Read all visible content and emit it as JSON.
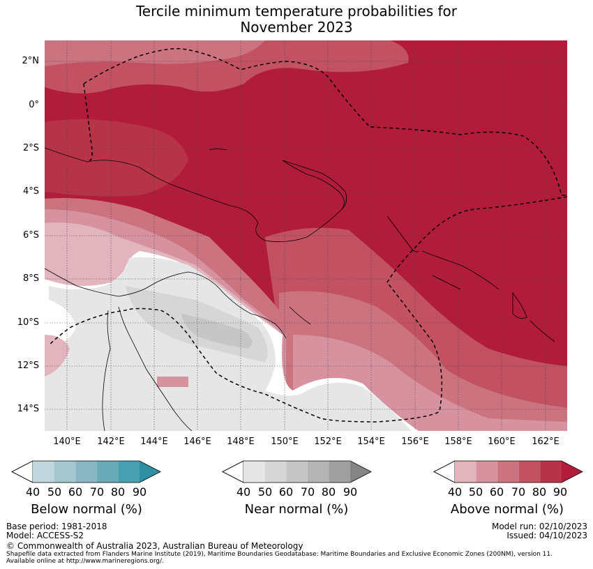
{
  "title": {
    "line1": "Tercile minimum temperature probabilities for",
    "line2": "November 2023"
  },
  "map": {
    "lat_labels": [
      "2°N",
      "0°",
      "2°S",
      "4°S",
      "6°S",
      "8°S",
      "10°S",
      "12°S",
      "14°S"
    ],
    "lon_labels": [
      "140°E",
      "142°E",
      "144°E",
      "146°E",
      "148°E",
      "150°E",
      "152°E",
      "154°E",
      "156°E",
      "158°E",
      "160°E",
      "162°E"
    ],
    "lat_range": [
      2.9,
      -15
    ],
    "lon_range": [
      139,
      163
    ]
  },
  "legend": {
    "below": {
      "title": "Below normal (%)",
      "ticks": [
        "40",
        "50",
        "60",
        "70",
        "80",
        "90"
      ],
      "colors": [
        "#ffffff",
        "#bfd6dc",
        "#a7c7cf",
        "#89b7c3",
        "#6aaab9",
        "#46a0b1",
        "#2e8fa2"
      ]
    },
    "near": {
      "title": "Near normal (%)",
      "ticks": [
        "40",
        "50",
        "60",
        "70",
        "80",
        "90"
      ],
      "colors": [
        "#ffffff",
        "#e6e6e6",
        "#d6d6d6",
        "#c6c6c6",
        "#b4b4b4",
        "#a0a0a0",
        "#858585"
      ]
    },
    "above": {
      "title": "Above normal (%)",
      "ticks": [
        "40",
        "50",
        "60",
        "70",
        "80",
        "90"
      ],
      "colors": [
        "#ffffff",
        "#e2b4bd",
        "#d6939f",
        "#cb737f",
        "#c25262",
        "#b73448",
        "#b01c3a"
      ]
    }
  },
  "footer": {
    "base_period": "Base period: 1981-2018",
    "model": "Model: ACCESS-S2",
    "model_run": "Model run: 02/10/2023",
    "issued": "Issued: 04/10/2023",
    "copyright": "© Commonwealth of Australia 2023, Australian Bureau of Meteorology",
    "shapefile_line1": "Shapefile data extracted from Flanders Marine Institute (2019), Maritime Boundaries Geodatabase: Maritime Boundaries and Exclusive Economic Zones (200NM), version 11.",
    "shapefile_line2": "Available online at http://www.marineregions.org/."
  }
}
